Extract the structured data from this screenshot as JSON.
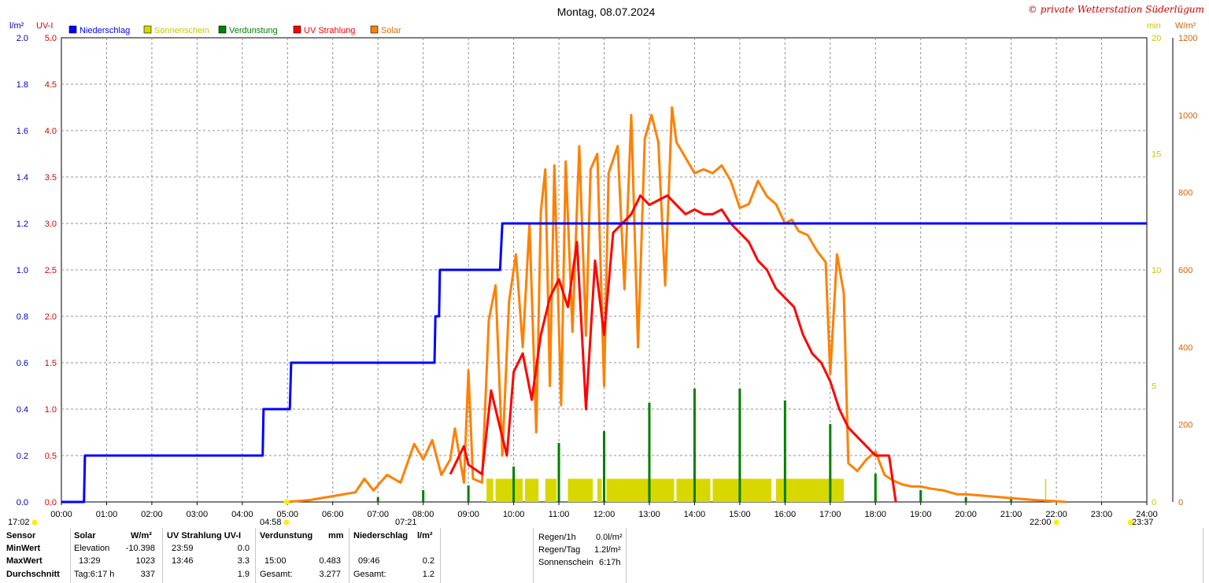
{
  "title": "Montag, 08.07.2024",
  "copyright": "© private Wetterstation Süderlügum",
  "legend": [
    {
      "label": "Niederschlag",
      "color": "#0000ff"
    },
    {
      "label": "Sonnenschein",
      "color": "#d8d800"
    },
    {
      "label": "Verdunstung",
      "color": "#008000"
    },
    {
      "label": "UV Strahlung",
      "color": "#ff0000"
    },
    {
      "label": "Solar",
      "color": "#ff8000"
    }
  ],
  "axis_units": {
    "rain": "l/m²",
    "uv": "UV-I",
    "sun": "min",
    "solar": "W/m²"
  },
  "sun_marks": {
    "sunrise_time": "04:58",
    "sunset_time": "22:00",
    "left_time": "17:02",
    "right_time": "23:37",
    "mid_time": "07:21"
  },
  "chart_data": {
    "type": "line",
    "title": "Montag, 08.07.2024",
    "x": {
      "min": 0,
      "max": 24,
      "ticks": [
        "00:00",
        "01:00",
        "02:00",
        "03:00",
        "04:00",
        "05:00",
        "06:00",
        "07:00",
        "08:00",
        "09:00",
        "10:00",
        "11:00",
        "12:00",
        "13:00",
        "14:00",
        "15:00",
        "16:00",
        "17:00",
        "18:00",
        "19:00",
        "20:00",
        "21:00",
        "22:00",
        "23:00",
        "24:00"
      ]
    },
    "axes": {
      "rain": {
        "label": "l/m²",
        "range": [
          0,
          2.0
        ],
        "ticks": [
          "0.0",
          "0.2",
          "0.4",
          "0.6",
          "0.8",
          "1.0",
          "1.2",
          "1.4",
          "1.6",
          "1.8",
          "2.0"
        ],
        "color": "#0000c0"
      },
      "uv": {
        "label": "UV-I",
        "range": [
          0,
          5.0
        ],
        "ticks": [
          "0.0",
          "0.5",
          "1.0",
          "1.5",
          "2.0",
          "2.5",
          "3.0",
          "3.5",
          "4.0",
          "4.5",
          "5.0"
        ],
        "color": "#e00000"
      },
      "sun": {
        "label": "min",
        "range": [
          0,
          20
        ],
        "ticks": [
          "0",
          "5",
          "10",
          "15",
          "20"
        ],
        "color": "#c8c800"
      },
      "solar": {
        "label": "W/m²",
        "range": [
          0,
          1200
        ],
        "ticks": [
          "0",
          "200",
          "400",
          "600",
          "800",
          "1000",
          "1200"
        ],
        "color": "#d86000"
      }
    },
    "grid": true,
    "series": [
      {
        "name": "Niederschlag",
        "axis": "rain",
        "color": "#0000ff",
        "step": true,
        "points": [
          [
            0,
            0
          ],
          [
            0.5,
            0
          ],
          [
            0.52,
            0.2
          ],
          [
            4.45,
            0.2
          ],
          [
            4.47,
            0.4
          ],
          [
            5.05,
            0.4
          ],
          [
            5.08,
            0.6
          ],
          [
            8.25,
            0.6
          ],
          [
            8.27,
            0.8
          ],
          [
            8.35,
            0.8
          ],
          [
            8.37,
            1.0
          ],
          [
            9.7,
            1.0
          ],
          [
            9.75,
            1.2
          ],
          [
            24,
            1.2
          ]
        ]
      },
      {
        "name": "Solar",
        "axis": "solar",
        "color": "#ff8000",
        "points": [
          [
            5.0,
            0
          ],
          [
            5.5,
            5
          ],
          [
            6.0,
            15
          ],
          [
            6.5,
            25
          ],
          [
            6.7,
            60
          ],
          [
            6.9,
            30
          ],
          [
            7.2,
            70
          ],
          [
            7.5,
            50
          ],
          [
            7.8,
            150
          ],
          [
            8.0,
            110
          ],
          [
            8.2,
            160
          ],
          [
            8.4,
            70
          ],
          [
            8.6,
            110
          ],
          [
            8.7,
            190
          ],
          [
            8.9,
            50
          ],
          [
            9.0,
            340
          ],
          [
            9.1,
            60
          ],
          [
            9.3,
            50
          ],
          [
            9.45,
            470
          ],
          [
            9.6,
            560
          ],
          [
            9.75,
            120
          ],
          [
            9.9,
            520
          ],
          [
            10.05,
            640
          ],
          [
            10.2,
            400
          ],
          [
            10.35,
            720
          ],
          [
            10.5,
            180
          ],
          [
            10.6,
            750
          ],
          [
            10.7,
            860
          ],
          [
            10.8,
            300
          ],
          [
            10.9,
            870
          ],
          [
            11.05,
            250
          ],
          [
            11.15,
            880
          ],
          [
            11.3,
            440
          ],
          [
            11.45,
            920
          ],
          [
            11.6,
            430
          ],
          [
            11.7,
            860
          ],
          [
            11.85,
            900
          ],
          [
            12.0,
            300
          ],
          [
            12.1,
            850
          ],
          [
            12.3,
            920
          ],
          [
            12.45,
            550
          ],
          [
            12.6,
            1000
          ],
          [
            12.75,
            400
          ],
          [
            12.9,
            940
          ],
          [
            13.05,
            1000
          ],
          [
            13.2,
            930
          ],
          [
            13.35,
            560
          ],
          [
            13.5,
            1020
          ],
          [
            13.6,
            930
          ],
          [
            13.8,
            890
          ],
          [
            14.0,
            850
          ],
          [
            14.2,
            860
          ],
          [
            14.4,
            850
          ],
          [
            14.6,
            870
          ],
          [
            14.8,
            830
          ],
          [
            15.0,
            760
          ],
          [
            15.2,
            770
          ],
          [
            15.4,
            830
          ],
          [
            15.6,
            790
          ],
          [
            15.8,
            770
          ],
          [
            16.0,
            720
          ],
          [
            16.15,
            730
          ],
          [
            16.3,
            700
          ],
          [
            16.5,
            690
          ],
          [
            16.7,
            650
          ],
          [
            16.9,
            620
          ],
          [
            17.0,
            330
          ],
          [
            17.15,
            640
          ],
          [
            17.3,
            540
          ],
          [
            17.4,
            100
          ],
          [
            17.6,
            80
          ],
          [
            17.8,
            110
          ],
          [
            18.0,
            130
          ],
          [
            18.2,
            70
          ],
          [
            18.4,
            55
          ],
          [
            18.6,
            45
          ],
          [
            18.8,
            40
          ],
          [
            19.0,
            40
          ],
          [
            19.2,
            35
          ],
          [
            19.5,
            30
          ],
          [
            19.8,
            20
          ],
          [
            20.0,
            20
          ],
          [
            20.5,
            15
          ],
          [
            21.0,
            10
          ],
          [
            21.5,
            5
          ],
          [
            22.0,
            2
          ],
          [
            22.2,
            0
          ]
        ]
      },
      {
        "name": "UV Strahlung",
        "axis": "uv",
        "color": "#ff0000",
        "points": [
          [
            8.6,
            0.3
          ],
          [
            8.9,
            0.6
          ],
          [
            9.0,
            0.4
          ],
          [
            9.3,
            0.3
          ],
          [
            9.5,
            1.2
          ],
          [
            9.7,
            0.8
          ],
          [
            9.85,
            0.5
          ],
          [
            10.0,
            1.4
          ],
          [
            10.2,
            1.6
          ],
          [
            10.4,
            1.1
          ],
          [
            10.6,
            1.8
          ],
          [
            10.8,
            2.2
          ],
          [
            11.0,
            2.4
          ],
          [
            11.2,
            2.1
          ],
          [
            11.4,
            2.8
          ],
          [
            11.6,
            1.0
          ],
          [
            11.8,
            2.6
          ],
          [
            12.0,
            1.8
          ],
          [
            12.2,
            2.9
          ],
          [
            12.4,
            3.0
          ],
          [
            12.6,
            3.1
          ],
          [
            12.8,
            3.3
          ],
          [
            13.0,
            3.2
          ],
          [
            13.2,
            3.25
          ],
          [
            13.4,
            3.3
          ],
          [
            13.6,
            3.2
          ],
          [
            13.8,
            3.1
          ],
          [
            14.0,
            3.15
          ],
          [
            14.2,
            3.1
          ],
          [
            14.4,
            3.1
          ],
          [
            14.6,
            3.15
          ],
          [
            14.8,
            3.0
          ],
          [
            15.0,
            2.9
          ],
          [
            15.2,
            2.8
          ],
          [
            15.4,
            2.6
          ],
          [
            15.6,
            2.5
          ],
          [
            15.8,
            2.3
          ],
          [
            16.0,
            2.2
          ],
          [
            16.2,
            2.1
          ],
          [
            16.4,
            1.8
          ],
          [
            16.6,
            1.6
          ],
          [
            16.8,
            1.5
          ],
          [
            17.0,
            1.3
          ],
          [
            17.2,
            1.0
          ],
          [
            17.4,
            0.8
          ],
          [
            17.6,
            0.7
          ],
          [
            17.8,
            0.6
          ],
          [
            18.0,
            0.5
          ],
          [
            18.3,
            0.5
          ],
          [
            18.45,
            0.0
          ]
        ]
      },
      {
        "name": "Sonnenschein",
        "axis": "sun",
        "color": "#d8d800",
        "bars": [
          [
            9.4,
            9.55
          ],
          [
            9.6,
            10.2
          ],
          [
            10.25,
            10.55
          ],
          [
            10.7,
            10.95
          ],
          [
            11.2,
            11.75
          ],
          [
            11.85,
            11.95
          ],
          [
            12.05,
            13.55
          ],
          [
            13.6,
            14.35
          ],
          [
            14.4,
            15.7
          ],
          [
            15.8,
            17.3
          ],
          [
            21.75,
            21.77
          ]
        ],
        "value": 1
      }
    ],
    "evap_spikes": [
      [
        7.0,
        0.02
      ],
      [
        8.0,
        0.05
      ],
      [
        9.0,
        0.07
      ],
      [
        10.0,
        0.15
      ],
      [
        11.0,
        0.25
      ],
      [
        12.0,
        0.3
      ],
      [
        13.0,
        0.42
      ],
      [
        14.0,
        0.48
      ],
      [
        15.0,
        0.48
      ],
      [
        16.0,
        0.43
      ],
      [
        17.0,
        0.33
      ],
      [
        18.0,
        0.12
      ],
      [
        19.0,
        0.05
      ],
      [
        20.0,
        0.02
      ],
      [
        21.0,
        0.02
      ]
    ]
  },
  "stats": {
    "headers": {
      "sensor": "Sensor",
      "solar": "Solar",
      "solar_unit": "W/m²",
      "uv": "UV Strahlung UV-I",
      "evap": "Verdunstung",
      "evap_unit": "mm",
      "rain": "Niederschlag",
      "rain_unit": "l/m²"
    },
    "rows": [
      {
        "label": "MinWert",
        "solar_time": "Elevation",
        "solar_val": "-10.398",
        "uv_time": "23:59",
        "uv_val": "0.0",
        "evap_time": "",
        "evap_val": "",
        "rain_time": "",
        "rain_val": ""
      },
      {
        "label": "MaxWert",
        "solar_time": "13:29",
        "solar_val": "1023",
        "uv_time": "13:46",
        "uv_val": "3.3",
        "evap_time": "15:00",
        "evap_val": "0.483",
        "rain_time": "09:46",
        "rain_val": "0.2"
      },
      {
        "label": "Durchschnitt",
        "solar_time": "Tag:6:17 h",
        "solar_val": "337",
        "uv_time": "",
        "uv_val": "1.9",
        "evap_time": "Gesamt:",
        "evap_val": "3.277",
        "rain_time": "Gesamt:",
        "rain_val": "1.2"
      }
    ],
    "extra": [
      {
        "label": "Regen/1h",
        "value": "0.0l/m²"
      },
      {
        "label": "Regen/Tag",
        "value": "1.2l/m²"
      },
      {
        "label": "Sonnenschein",
        "value": "6:17h"
      }
    ]
  }
}
